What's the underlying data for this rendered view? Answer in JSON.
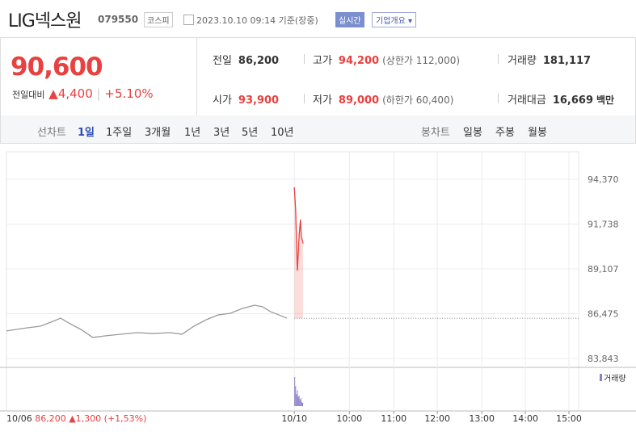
{
  "header": {
    "name": "LIG넥스원",
    "code": "079550",
    "market": "코스피",
    "timestamp": "2023.10.10 09:14 기준(장중)",
    "realtime": "실시간",
    "company_info": "기업개요"
  },
  "quote": {
    "price": "90,600",
    "change_label": "전일대비",
    "change": "4,400",
    "change_pct": "+5.10%"
  },
  "stats": [
    {
      "label": "전일",
      "value": "86,200"
    },
    {
      "label": "고가",
      "value": "94,200",
      "note": "(상한가 112,000)"
    },
    {
      "label": "거래량",
      "value": "181,117"
    },
    {
      "label": "시가",
      "value": "93,900"
    },
    {
      "label": "저가",
      "value": "89,000",
      "note": "(하한가 60,400)"
    },
    {
      "label": "거래대금",
      "value": "16,669",
      "unit": "백만"
    }
  ],
  "tabs": {
    "line_label": "선차트",
    "line": [
      "1일",
      "1주일",
      "3개월",
      "1년",
      "3년",
      "5년",
      "10년"
    ],
    "candle_label": "봉차트",
    "candle": [
      "일봉",
      "주봉",
      "월봉"
    ]
  },
  "footer": {
    "date": "10/06",
    "close": "86,200",
    "change": "1,300",
    "pct": "(+1,53%)"
  },
  "chart_data": {
    "type": "line",
    "series": [
      {
        "color": "#9a9a9a",
        "x": [
          0,
          2.2,
          4.9,
          7.7,
          10.5,
          12.3,
          14.1,
          16.9,
          19.6,
          22.4,
          26.1,
          29.7,
          33.4,
          37.1,
          39.9,
          42.6,
          45.4,
          48.1,
          50.9,
          53.6,
          56.4,
          58.2,
          60.0,
          61.9,
          63.7
        ],
        "values": [
          85460,
          85550,
          85650,
          85740,
          86020,
          86210,
          85930,
          85550,
          85080,
          85170,
          85270,
          85360,
          85310,
          85360,
          85270,
          85740,
          86120,
          86400,
          86500,
          86780,
          86970,
          86880,
          86590,
          86400,
          86210
        ]
      },
      {
        "color": "#e8413f",
        "x": [
          65.4,
          65.7,
          66.1,
          66.5,
          66.8,
          67.0,
          67.4
        ],
        "values": [
          93900,
          92600,
          89000,
          91100,
          92000,
          91000,
          90600
        ]
      }
    ],
    "baseline": 86200,
    "xlim": [
      0,
      130
    ],
    "xticks": [
      {
        "value": 65.4,
        "label": "10/10"
      },
      {
        "value": 77.9,
        "label": "10:00"
      },
      {
        "value": 88,
        "label": "11:00"
      },
      {
        "value": 97.9,
        "label": "12:00"
      },
      {
        "value": 108,
        "label": "13:00"
      },
      {
        "value": 117.9,
        "label": "14:00"
      },
      {
        "value": 127.8,
        "label": "15:00"
      }
    ],
    "ylim": [
      83321,
      95982
    ],
    "yticks": [
      {
        "value": 94370,
        "label": "94,370"
      },
      {
        "value": 91738,
        "label": "91,738"
      },
      {
        "value": 89107,
        "label": "89,107"
      },
      {
        "value": 86475,
        "label": "86,475"
      },
      {
        "value": 83843,
        "label": "83,843"
      }
    ],
    "grid": true,
    "volume": {
      "name": "거래량",
      "color": "#8c7ecb",
      "x": [
        65.4,
        65.6,
        65.8,
        66.0,
        66.2,
        66.4,
        66.6,
        66.8,
        67.0,
        67.2
      ],
      "values": [
        22000,
        15000,
        9000,
        12000,
        7000,
        8000,
        5000,
        6000,
        3000,
        2500
      ],
      "ylim": [
        0,
        25000
      ]
    }
  }
}
